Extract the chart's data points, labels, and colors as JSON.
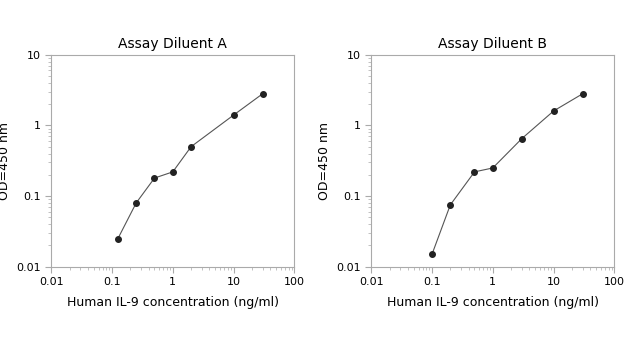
{
  "panel_A": {
    "title": "Assay Diluent A",
    "x": [
      0.125,
      0.25,
      0.5,
      1.0,
      2.0,
      10.0,
      30.0
    ],
    "y": [
      0.025,
      0.08,
      0.18,
      0.22,
      0.5,
      1.4,
      2.8
    ],
    "xlabel": "Human IL-9 concentration (ng/ml)",
    "ylabel": "OD=450 nm"
  },
  "panel_B": {
    "title": "Assay Diluent B",
    "x": [
      0.1,
      0.2,
      0.5,
      1.0,
      3.0,
      10.0,
      30.0
    ],
    "y": [
      0.015,
      0.075,
      0.22,
      0.25,
      0.65,
      1.6,
      2.8
    ],
    "xlabel": "Human IL-9 concentration (ng/ml)",
    "ylabel": "OD=450 nm"
  },
  "xlim": [
    0.01,
    100
  ],
  "ylim": [
    0.01,
    10
  ],
  "line_color": "#555555",
  "marker_color": "#222222",
  "marker_size": 4,
  "line_width": 0.8,
  "bg_color": "#ffffff",
  "title_fontsize": 10,
  "label_fontsize": 9,
  "tick_fontsize": 8,
  "spine_color": "#aaaaaa"
}
